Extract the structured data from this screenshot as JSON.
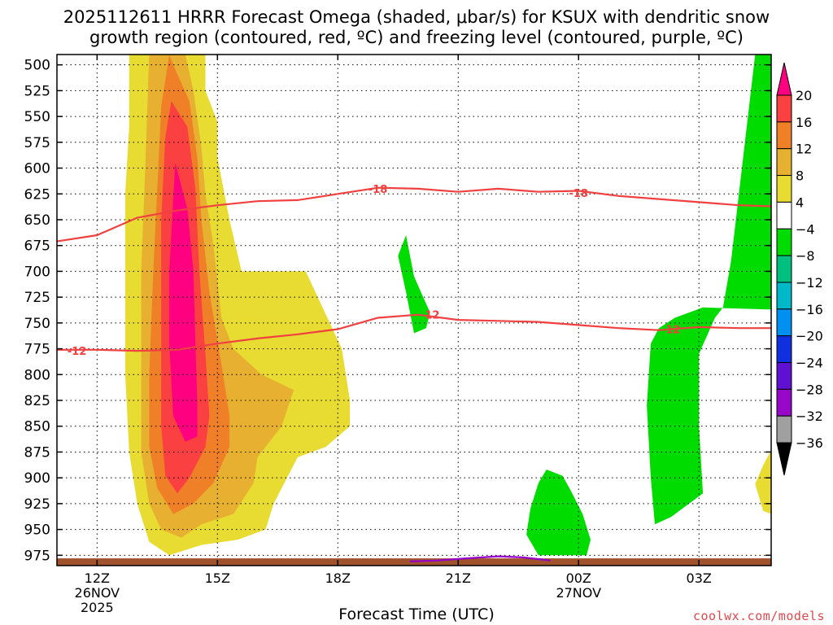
{
  "title_line1": "2025112611 HRRR Forecast Omega (shaded, μbar/s) for KSUX with dendritic snow",
  "title_line2": "growth region (contoured, red, ºC) and freezing level (contoured, purple, ºC)",
  "x_axis_label": "Forecast Time (UTC)",
  "credit": "coolwx.com/models",
  "chart_data": {
    "type": "heatmap",
    "y_ticks": [
      "500",
      "525",
      "550",
      "575",
      "600",
      "625",
      "650",
      "675",
      "700",
      "725",
      "750",
      "775",
      "800",
      "825",
      "850",
      "875",
      "900",
      "925",
      "950",
      "975"
    ],
    "x_ticks": [
      {
        "label": "12Z",
        "sub1": "26NOV",
        "sub2": "2025",
        "hour": 12
      },
      {
        "label": "15Z",
        "sub1": "",
        "sub2": "",
        "hour": 15
      },
      {
        "label": "18Z",
        "sub1": "",
        "sub2": "",
        "hour": 18
      },
      {
        "label": "21Z",
        "sub1": "",
        "sub2": "",
        "hour": 21
      },
      {
        "label": "00Z",
        "sub1": "27NOV",
        "sub2": "",
        "hour": 24
      },
      {
        "label": "03Z",
        "sub1": "",
        "sub2": "",
        "hour": 27
      }
    ],
    "x_range_hours": [
      11,
      28.8
    ],
    "y_range_mb": [
      490,
      985
    ],
    "grid": true,
    "colorbar": {
      "labels": [
        "20",
        "16",
        "12",
        "8",
        "4",
        "-4",
        "-8",
        "-12",
        "-16",
        "-20",
        "-24",
        "-28",
        "-32",
        "-36"
      ],
      "colors": [
        "#ff0080",
        "#fa4040",
        "#f08028",
        "#e8b030",
        "#e8dc32",
        "#ffffff",
        "#00dc00",
        "#00c080",
        "#00b8c8",
        "#0090f0",
        "#1030e0",
        "#6010d0",
        "#9808c8",
        "#a0a0a0",
        "#000000"
      ]
    },
    "omega_colors": {
      "4": "#e8dc32",
      "8": "#e8b030",
      "12": "#f08028",
      "16": "#fa4040",
      "20": "#ff0080",
      "-4": "#00dc00"
    },
    "contours": [
      {
        "label": "-18",
        "color": "#f04040",
        "label_positions": [
          {
            "hour": 19.0,
            "p": 620
          },
          {
            "hour": 24.0,
            "p": 624
          }
        ],
        "points": [
          [
            11,
            671
          ],
          [
            12,
            665
          ],
          [
            13,
            648
          ],
          [
            14,
            641
          ],
          [
            15,
            636
          ],
          [
            16,
            632
          ],
          [
            17,
            631
          ],
          [
            18,
            625
          ],
          [
            19,
            619
          ],
          [
            20,
            620
          ],
          [
            21,
            623
          ],
          [
            22,
            620
          ],
          [
            23,
            623
          ],
          [
            24,
            622
          ],
          [
            25,
            627
          ],
          [
            26,
            630
          ],
          [
            27,
            633
          ],
          [
            28,
            636
          ],
          [
            28.8,
            637
          ]
        ]
      },
      {
        "label": "-12",
        "color": "#f04040",
        "label_positions": [
          {
            "hour": 11.5,
            "p": 777
          },
          {
            "hour": 20.3,
            "p": 742
          },
          {
            "hour": 26.3,
            "p": 756
          }
        ],
        "points": [
          [
            11,
            776
          ],
          [
            12,
            776
          ],
          [
            13,
            777
          ],
          [
            14,
            776
          ],
          [
            15,
            770
          ],
          [
            16,
            765
          ],
          [
            17,
            761
          ],
          [
            18,
            756
          ],
          [
            19,
            745
          ],
          [
            20,
            742
          ],
          [
            21,
            747
          ],
          [
            22,
            748
          ],
          [
            23,
            749
          ],
          [
            24,
            752
          ],
          [
            25,
            755
          ],
          [
            26,
            757
          ],
          [
            27,
            754
          ],
          [
            28,
            755
          ],
          [
            28.8,
            755
          ]
        ]
      },
      {
        "label": "",
        "color": "#9400c8",
        "label_positions": [],
        "points": [
          [
            19.8,
            981
          ],
          [
            20.5,
            980
          ],
          [
            21.2,
            978
          ],
          [
            22,
            976
          ],
          [
            22.6,
            977
          ],
          [
            23.3,
            980
          ]
        ]
      }
    ],
    "regions": [
      {
        "value": 4,
        "points": [
          [
            12.8,
            490
          ],
          [
            14.7,
            490
          ],
          [
            14.7,
            525
          ],
          [
            15.0,
            555
          ],
          [
            15.0,
            590
          ],
          [
            15.3,
            650
          ],
          [
            15.6,
            700
          ],
          [
            17.2,
            700
          ],
          [
            17.5,
            725
          ],
          [
            18.1,
            775
          ],
          [
            18.3,
            825
          ],
          [
            18.3,
            850
          ],
          [
            17.7,
            870
          ],
          [
            17.0,
            880
          ],
          [
            16.4,
            925
          ],
          [
            16.2,
            950
          ],
          [
            15.5,
            960
          ],
          [
            14.6,
            965
          ],
          [
            13.8,
            975
          ],
          [
            13.3,
            962
          ],
          [
            13.0,
            925
          ],
          [
            12.8,
            875
          ],
          [
            12.7,
            800
          ],
          [
            12.7,
            700
          ],
          [
            12.7,
            625
          ],
          [
            12.8,
            560
          ]
        ]
      },
      {
        "value": 8,
        "points": [
          [
            13.3,
            490
          ],
          [
            14.2,
            490
          ],
          [
            14.4,
            525
          ],
          [
            14.6,
            580
          ],
          [
            14.7,
            625
          ],
          [
            14.9,
            675
          ],
          [
            15.1,
            745
          ],
          [
            15.4,
            775
          ],
          [
            16.1,
            800
          ],
          [
            16.9,
            815
          ],
          [
            16.6,
            850
          ],
          [
            16.0,
            880
          ],
          [
            15.9,
            905
          ],
          [
            15.4,
            935
          ],
          [
            14.6,
            945
          ],
          [
            14.1,
            958
          ],
          [
            13.6,
            950
          ],
          [
            13.3,
            925
          ],
          [
            13.1,
            875
          ],
          [
            13.1,
            800
          ],
          [
            13.1,
            700
          ],
          [
            13.2,
            600
          ]
        ]
      },
      {
        "value": 12,
        "points": [
          [
            13.8,
            490
          ],
          [
            13.9,
            500
          ],
          [
            14.3,
            535
          ],
          [
            14.5,
            590
          ],
          [
            14.6,
            650
          ],
          [
            14.8,
            720
          ],
          [
            15.1,
            790
          ],
          [
            15.3,
            840
          ],
          [
            15.3,
            870
          ],
          [
            14.9,
            905
          ],
          [
            14.4,
            925
          ],
          [
            13.9,
            935
          ],
          [
            13.5,
            910
          ],
          [
            13.3,
            870
          ],
          [
            13.3,
            800
          ],
          [
            13.4,
            700
          ],
          [
            13.5,
            620
          ],
          [
            13.6,
            540
          ]
        ]
      },
      {
        "value": 16,
        "points": [
          [
            13.85,
            535
          ],
          [
            14.25,
            560
          ],
          [
            14.45,
            620
          ],
          [
            14.55,
            700
          ],
          [
            14.7,
            780
          ],
          [
            14.8,
            840
          ],
          [
            14.7,
            870
          ],
          [
            14.3,
            900
          ],
          [
            14.0,
            915
          ],
          [
            13.7,
            898
          ],
          [
            13.6,
            850
          ],
          [
            13.6,
            750
          ],
          [
            13.6,
            650
          ],
          [
            13.7,
            570
          ]
        ]
      },
      {
        "value": 20,
        "points": [
          [
            13.95,
            595
          ],
          [
            14.25,
            640
          ],
          [
            14.4,
            700
          ],
          [
            14.45,
            770
          ],
          [
            14.5,
            830
          ],
          [
            14.5,
            860
          ],
          [
            14.2,
            865
          ],
          [
            13.9,
            840
          ],
          [
            13.8,
            770
          ],
          [
            13.8,
            700
          ],
          [
            13.9,
            630
          ]
        ]
      },
      {
        "value": -4,
        "points": [
          [
            19.7,
            665
          ],
          [
            19.9,
            705
          ],
          [
            20.3,
            740
          ],
          [
            20.2,
            755
          ],
          [
            19.9,
            760
          ],
          [
            19.7,
            720
          ],
          [
            19.5,
            685
          ]
        ]
      },
      {
        "value": -4,
        "points": [
          [
            23.2,
            892
          ],
          [
            23.6,
            898
          ],
          [
            23.8,
            912
          ],
          [
            24.1,
            935
          ],
          [
            24.3,
            960
          ],
          [
            24.2,
            975
          ],
          [
            23.0,
            975
          ],
          [
            22.7,
            955
          ],
          [
            22.8,
            930
          ],
          [
            23.0,
            905
          ]
        ]
      },
      {
        "value": -4,
        "points": [
          [
            25.8,
            770
          ],
          [
            26.0,
            755
          ],
          [
            26.4,
            745
          ],
          [
            27.1,
            735
          ],
          [
            28.8,
            737
          ],
          [
            28.8,
            490
          ],
          [
            28.4,
            490
          ],
          [
            27.8,
            690
          ],
          [
            27.6,
            735
          ],
          [
            27.4,
            745
          ],
          [
            27.0,
            780
          ],
          [
            27.0,
            850
          ],
          [
            27.1,
            915
          ],
          [
            26.3,
            938
          ],
          [
            25.9,
            945
          ],
          [
            25.8,
            900
          ],
          [
            25.7,
            830
          ]
        ]
      },
      {
        "value": 4,
        "points": [
          [
            28.8,
            873
          ],
          [
            28.8,
            935
          ],
          [
            28.6,
            932
          ],
          [
            28.4,
            906
          ],
          [
            28.6,
            888
          ]
        ]
      }
    ],
    "ground": {
      "color": "#a0522d",
      "top_p": 978
    }
  }
}
